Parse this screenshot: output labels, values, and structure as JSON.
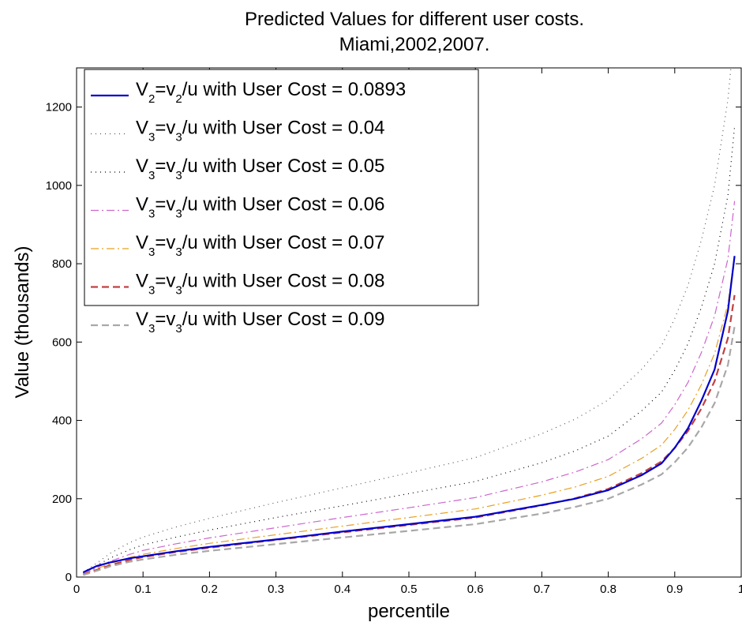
{
  "chart_data": {
    "type": "line",
    "title": [
      "Predicted Values for different user costs.",
      "Miami,2002,2007."
    ],
    "xlabel": "percentile",
    "ylabel": "Value (thousands)",
    "xlim": [
      0,
      1
    ],
    "ylim": [
      0,
      1300
    ],
    "x_ticks": [
      0,
      0.1,
      0.2,
      0.3,
      0.4,
      0.5,
      0.6,
      0.7,
      0.8,
      0.9,
      1
    ],
    "x_tick_labels": [
      "0",
      "0.1",
      "0.2",
      "0.3",
      "0.4",
      "0.5",
      "0.6",
      "0.7",
      "0.8",
      "0.9",
      "1"
    ],
    "y_ticks": [
      0,
      200,
      400,
      600,
      800,
      1000,
      1200
    ],
    "y_tick_labels": [
      "0",
      "200",
      "400",
      "600",
      "800",
      "1000",
      "1200"
    ],
    "grid": false,
    "legend_position": "top-left",
    "x": [
      0.01,
      0.03,
      0.05,
      0.08,
      0.1,
      0.15,
      0.2,
      0.3,
      0.4,
      0.5,
      0.6,
      0.7,
      0.75,
      0.8,
      0.85,
      0.88,
      0.9,
      0.92,
      0.94,
      0.96,
      0.98,
      0.99
    ],
    "series": [
      {
        "legend": {
          "base": "V",
          "sub1": "2",
          "mid": "=v",
          "sub2": "2",
          "rest": "/u with User Cost = 0.0893"
        },
        "color": "#0000cc",
        "dash": "",
        "width": 2.2,
        "values": [
          12,
          28,
          37,
          48,
          53,
          66,
          77,
          96,
          116,
          135,
          154,
          184,
          200,
          222,
          260,
          290,
          330,
          380,
          450,
          530,
          680,
          820
        ]
      },
      {
        "legend": {
          "base": "V",
          "sub1": "3",
          "mid": "=v",
          "sub2": "3",
          "rest": "/u  with User Cost = 0.04"
        },
        "color": "#555555",
        "dash": "1,5",
        "width": 1.2,
        "values": [
          12,
          35,
          60,
          88,
          102,
          128,
          150,
          190,
          228,
          266,
          305,
          366,
          403,
          452,
          530,
          590,
          660,
          745,
          860,
          1000,
          1220,
          1400
        ]
      },
      {
        "legend": {
          "base": "V",
          "sub1": "3",
          "mid": "=v",
          "sub2": "3",
          "rest": "/u with User Cost = 0.05"
        },
        "color": "#000000",
        "dash": "1,5",
        "width": 1.2,
        "values": [
          10,
          29,
          48,
          70,
          82,
          102,
          120,
          152,
          182,
          213,
          244,
          292,
          322,
          360,
          424,
          472,
          528,
          596,
          688,
          800,
          975,
          1150
        ]
      },
      {
        "legend": {
          "base": "V",
          "sub1": "3",
          "mid": "=v",
          "sub2": "3",
          "rest": "/u  with User Cost = 0.06"
        },
        "color": "#cc66cc",
        "dash": "10,4,2,4",
        "width": 1.2,
        "values": [
          8,
          24,
          40,
          58,
          68,
          85,
          100,
          126,
          152,
          177,
          203,
          243,
          268,
          300,
          353,
          393,
          440,
          497,
          573,
          667,
          813,
          960
        ]
      },
      {
        "legend": {
          "base": "V",
          "sub1": "3",
          "mid": "=v",
          "sub2": "3",
          "rest": "/u  with User Cost = 0.07"
        },
        "color": "#e8a020",
        "dash": "10,4,2,4",
        "width": 1.2,
        "values": [
          7,
          21,
          34,
          50,
          58,
          73,
          86,
          108,
          130,
          152,
          174,
          209,
          230,
          257,
          303,
          337,
          377,
          426,
          491,
          571,
          697,
          823
        ]
      },
      {
        "legend": {
          "base": "V",
          "sub1": "3",
          "mid": "=v",
          "sub2": "3",
          "rest": "/u  with User Cost = 0.08"
        },
        "color": "#c04040",
        "dash": "9,5",
        "width": 2.2,
        "values": [
          6,
          18,
          30,
          44,
          51,
          64,
          75,
          95,
          114,
          133,
          152,
          183,
          201,
          225,
          265,
          295,
          330,
          373,
          430,
          500,
          610,
          720
        ]
      },
      {
        "legend": {
          "base": "V",
          "sub1": "3",
          "mid": "=v",
          "sub2": "3",
          "rest": "/u  with User Cost = 0.09"
        },
        "color": "#a8a8a8",
        "dash": "9,5",
        "width": 2.2,
        "values": [
          5,
          16,
          27,
          39,
          45,
          57,
          67,
          84,
          101,
          118,
          135,
          162,
          179,
          200,
          236,
          262,
          293,
          331,
          382,
          444,
          542,
          640
        ]
      }
    ]
  }
}
